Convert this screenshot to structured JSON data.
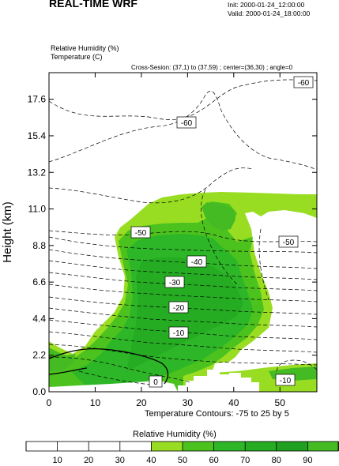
{
  "header": {
    "title": "REAL-TIME WRF",
    "init": "Init: 2000-01-24_12:00:00",
    "valid": "Valid: 2000-01-24_18:00:00",
    "fields": [
      "Relative Humidity   (%)",
      "Temperature   (C)"
    ],
    "cross_section": "Cross-Sesion: (37,1) to (37,59) ; center=(36,30) ; angle=0"
  },
  "chart_data": {
    "type": "heatmap",
    "ylabel": "Height (km)",
    "x_ticks": [
      "0",
      "10",
      "20",
      "30",
      "40",
      "50"
    ],
    "y_ticks": [
      "0.0",
      "2.2",
      "4.4",
      "6.6",
      "8.8",
      "11.0",
      "13.2",
      "15.4",
      "17.6"
    ],
    "xlim": [
      0,
      58
    ],
    "ylim": [
      0,
      19.2
    ],
    "contour_note": "Temperature Contours: -75 to 25 by 5",
    "contour_labels": [
      "-60",
      "-60",
      "-50",
      "-50",
      "-40",
      "-30",
      "-20",
      "-10",
      "0",
      "-10"
    ],
    "colorbar": {
      "title": "Relative Humidity  (%)",
      "ticks": [
        "10",
        "20",
        "30",
        "40",
        "50",
        "60",
        "70",
        "80",
        "90"
      ],
      "bins": [
        {
          "range": "0-40",
          "color": "#ffffff"
        },
        {
          "range": "40-50",
          "color": "#99dd22"
        },
        {
          "range": "50-60",
          "color": "#4cc21e"
        },
        {
          "range": "60-70",
          "color": "#2db627"
        },
        {
          "range": "70-80",
          "color": "#25ac22"
        },
        {
          "range": "80-90",
          "color": "#20a020"
        },
        {
          "range": "90-100",
          "color": "#44bb22"
        }
      ]
    }
  }
}
